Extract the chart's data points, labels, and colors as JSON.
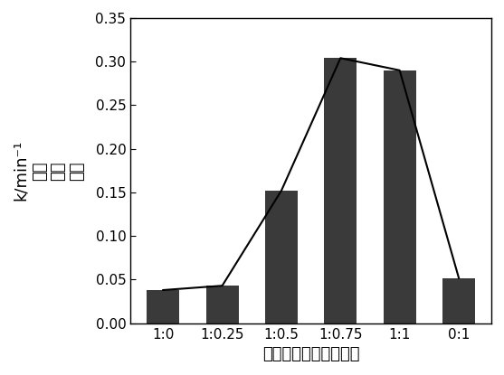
{
  "categories": [
    "1:0",
    "1:0.25",
    "1:0.5",
    "1:0.75",
    "1:1",
    "0:1"
  ],
  "values": [
    0.038,
    0.043,
    0.152,
    0.304,
    0.29,
    0.052
  ],
  "bar_color": "#3a3a3a",
  "line_color": "#000000",
  "ylabel_line1": "k/min⁻¹",
  "ylabel_line2": "反应",
  "ylabel_line3": "速率",
  "ylabel_line4": "常数",
  "xlabel": "铁鑉离子前驱体摩尔比",
  "ylim": [
    0,
    0.35
  ],
  "yticks": [
    0.0,
    0.05,
    0.1,
    0.15,
    0.2,
    0.25,
    0.3,
    0.35
  ],
  "bar_width": 0.55,
  "background_color": "#ffffff",
  "tick_fontsize": 11,
  "label_fontsize": 13
}
